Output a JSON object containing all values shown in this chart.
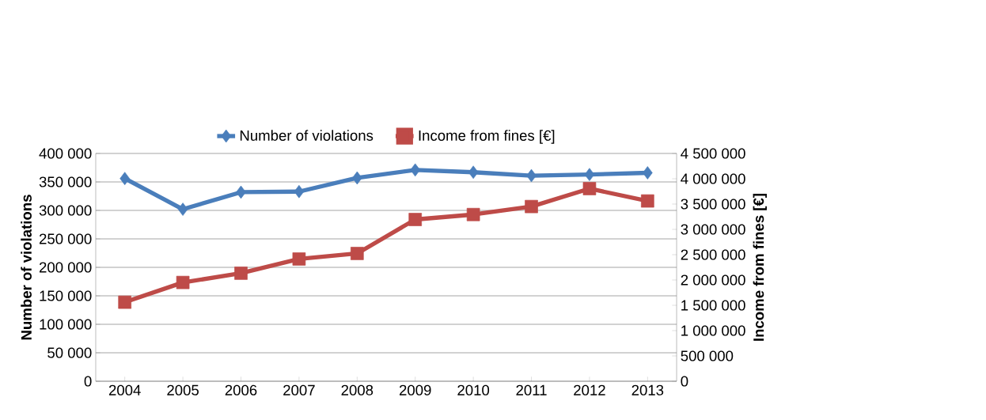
{
  "chart_data": {
    "type": "line",
    "categories": [
      "2004",
      "2005",
      "2006",
      "2007",
      "2008",
      "2009",
      "2010",
      "2011",
      "2012",
      "2013"
    ],
    "ylabel": "Number of violations",
    "y2label": "Income from fines [€]",
    "series": [
      {
        "name": "Number of violations",
        "color": "#4a7ebb",
        "marker": "diamond",
        "values": [
          356000,
          302000,
          332000,
          333000,
          357000,
          371000,
          367000,
          361000,
          363000,
          366000
        ]
      },
      {
        "name": "Income from fines [€]",
        "color": "#be4b48",
        "marker": "square",
        "axis": "y2",
        "values": [
          1561000,
          1951000,
          2134000,
          2415000,
          2524000,
          3195000,
          3293000,
          3451000,
          3805000,
          3561000
        ]
      }
    ],
    "ylim": [
      0,
      400000
    ],
    "yticks": [
      {
        "value": 0,
        "label": "0"
      },
      {
        "value": 50000,
        "label": "50 000"
      },
      {
        "value": 100000,
        "label": "100 000"
      },
      {
        "value": 150000,
        "label": "150 000"
      },
      {
        "value": 200000,
        "label": "200 000"
      },
      {
        "value": 250000,
        "label": "250 000"
      },
      {
        "value": 300000,
        "label": "300 000"
      },
      {
        "value": 350000,
        "label": "350 000"
      },
      {
        "value": 400000,
        "label": "400 000"
      }
    ],
    "y2lim": [
      0,
      4500000
    ],
    "y2ticks": [
      {
        "value": 0,
        "label": "0"
      },
      {
        "value": 500000,
        "label": "500 000"
      },
      {
        "value": 1000000,
        "label": "1 000 000"
      },
      {
        "value": 1500000,
        "label": "1 500 000"
      },
      {
        "value": 2000000,
        "label": "2 000 000"
      },
      {
        "value": 2500000,
        "label": "2 500 000"
      },
      {
        "value": 3000000,
        "label": "3 000 000"
      },
      {
        "value": 3500000,
        "label": "3 500 000"
      },
      {
        "value": 4000000,
        "label": "4 000 000"
      },
      {
        "value": 4500000,
        "label": "4 500 000"
      }
    ],
    "grid": "y",
    "legend": "top"
  }
}
